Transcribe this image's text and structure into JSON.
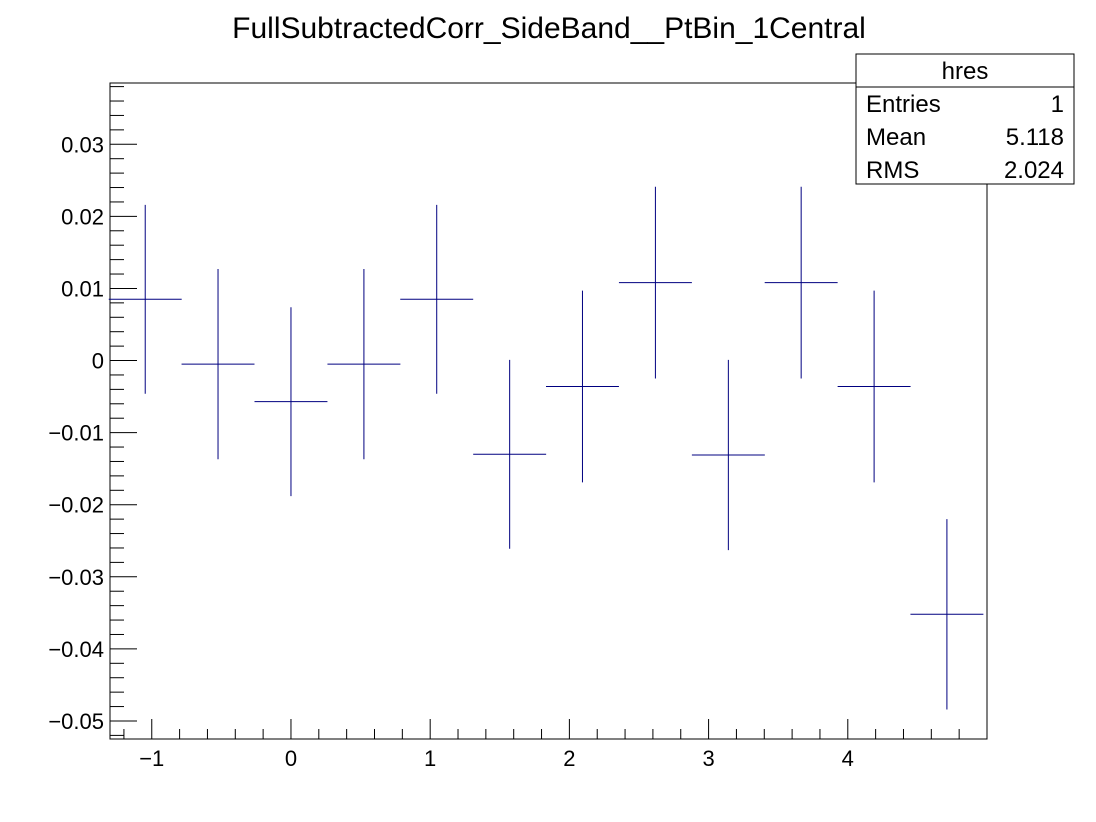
{
  "chart_data": {
    "type": "scatter",
    "title": "FullSubtractedCorr_SideBand__PtBin_1Central",
    "xlabel": "",
    "ylabel": "",
    "xlim": [
      -1.3,
      5.0
    ],
    "ylim": [
      -0.0525,
      0.0385
    ],
    "x_ticks": [
      -1,
      0,
      1,
      2,
      3,
      4
    ],
    "x_tick_labels": [
      "−1",
      "0",
      "1",
      "2",
      "3",
      "4"
    ],
    "y_ticks": [
      -0.05,
      -0.04,
      -0.03,
      -0.02,
      -0.01,
      0,
      0.01,
      0.02,
      0.03
    ],
    "y_tick_labels": [
      "−0.05",
      "−0.04",
      "−0.03",
      "−0.02",
      "−0.01",
      "0",
      "0.01",
      "0.02",
      "0.03"
    ],
    "marker_color": "#000080",
    "series": [
      {
        "points": [
          {
            "x": -1.047,
            "xerr": 0.262,
            "y": 0.0085,
            "yerr": 0.0131
          },
          {
            "x": -0.524,
            "xerr": 0.262,
            "y": -0.0005,
            "yerr": 0.0132
          },
          {
            "x": 0.0,
            "xerr": 0.262,
            "y": -0.0057,
            "yerr": 0.0131
          },
          {
            "x": 0.524,
            "xerr": 0.262,
            "y": -0.0005,
            "yerr": 0.0132
          },
          {
            "x": 1.047,
            "xerr": 0.262,
            "y": 0.0085,
            "yerr": 0.0131
          },
          {
            "x": 1.571,
            "xerr": 0.262,
            "y": -0.013,
            "yerr": 0.0131
          },
          {
            "x": 2.094,
            "xerr": 0.262,
            "y": -0.0036,
            "yerr": 0.0133
          },
          {
            "x": 2.618,
            "xerr": 0.262,
            "y": 0.0108,
            "yerr": 0.0133
          },
          {
            "x": 3.142,
            "xerr": 0.262,
            "y": -0.0131,
            "yerr": 0.0132
          },
          {
            "x": 3.665,
            "xerr": 0.262,
            "y": 0.0108,
            "yerr": 0.0133
          },
          {
            "x": 4.189,
            "xerr": 0.262,
            "y": -0.0036,
            "yerr": 0.0133
          },
          {
            "x": 4.712,
            "xerr": 0.262,
            "y": -0.0352,
            "yerr": 0.0132
          }
        ]
      }
    ],
    "stats_box": {
      "name": "hres",
      "rows": [
        {
          "label": "Entries",
          "value": "1"
        },
        {
          "label": "Mean",
          "value": "5.118"
        },
        {
          "label": "RMS",
          "value": "2.024"
        }
      ]
    }
  }
}
